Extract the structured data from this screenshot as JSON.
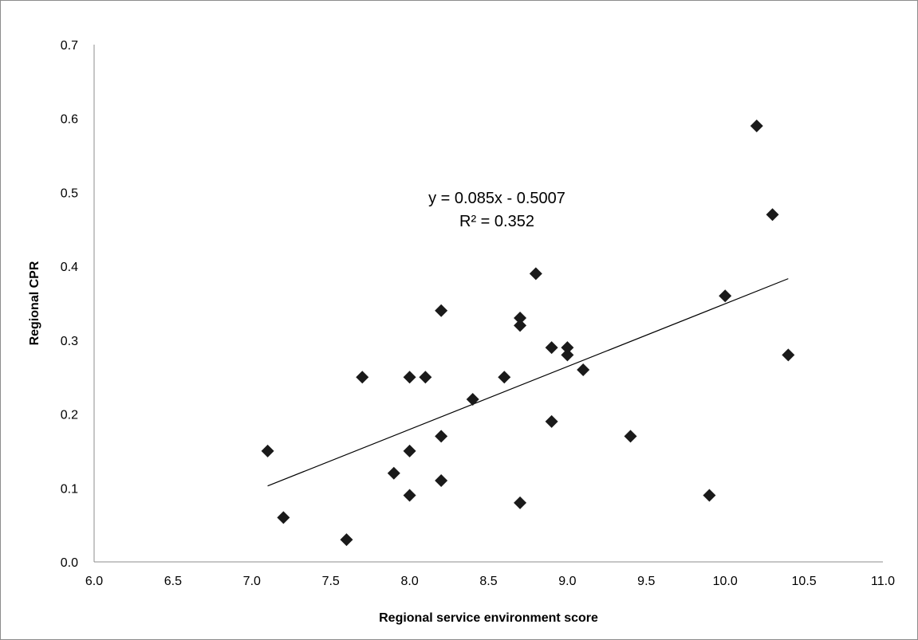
{
  "chart_data": {
    "type": "scatter",
    "title": "",
    "xlabel": "Regional service environment score",
    "ylabel": "Regional CPR",
    "xlim": [
      6.0,
      11.0
    ],
    "ylim": [
      0.0,
      0.7
    ],
    "x_ticks": [
      "6.0",
      "6.5",
      "7.0",
      "7.5",
      "8.0",
      "8.5",
      "9.0",
      "9.5",
      "10.0",
      "10.5",
      "11.0"
    ],
    "y_ticks": [
      "0.0",
      "0.1",
      "0.2",
      "0.3",
      "0.4",
      "0.5",
      "0.6",
      "0.7"
    ],
    "grid": false,
    "marker": "diamond",
    "marker_color": "#1a1a1a",
    "points": [
      {
        "x": 7.1,
        "y": 0.15
      },
      {
        "x": 7.2,
        "y": 0.06
      },
      {
        "x": 7.6,
        "y": 0.03
      },
      {
        "x": 7.7,
        "y": 0.25
      },
      {
        "x": 7.9,
        "y": 0.12
      },
      {
        "x": 8.0,
        "y": 0.25
      },
      {
        "x": 8.0,
        "y": 0.15
      },
      {
        "x": 8.0,
        "y": 0.09
      },
      {
        "x": 8.1,
        "y": 0.25
      },
      {
        "x": 8.2,
        "y": 0.34
      },
      {
        "x": 8.2,
        "y": 0.17
      },
      {
        "x": 8.2,
        "y": 0.11
      },
      {
        "x": 8.4,
        "y": 0.22
      },
      {
        "x": 8.6,
        "y": 0.25
      },
      {
        "x": 8.7,
        "y": 0.33
      },
      {
        "x": 8.7,
        "y": 0.32
      },
      {
        "x": 8.7,
        "y": 0.08
      },
      {
        "x": 8.8,
        "y": 0.39
      },
      {
        "x": 8.9,
        "y": 0.29
      },
      {
        "x": 8.9,
        "y": 0.19
      },
      {
        "x": 9.0,
        "y": 0.29
      },
      {
        "x": 9.0,
        "y": 0.28
      },
      {
        "x": 9.1,
        "y": 0.26
      },
      {
        "x": 9.4,
        "y": 0.17
      },
      {
        "x": 9.9,
        "y": 0.09
      },
      {
        "x": 10.0,
        "y": 0.36
      },
      {
        "x": 10.2,
        "y": 0.59
      },
      {
        "x": 10.3,
        "y": 0.47
      },
      {
        "x": 10.4,
        "y": 0.28
      }
    ],
    "trendline": {
      "slope": 0.085,
      "intercept": -0.5007,
      "x_start": 7.1,
      "x_end": 10.4,
      "equation": "y = 0.085x - 0.5007",
      "r_squared": "R² = 0.352"
    }
  }
}
